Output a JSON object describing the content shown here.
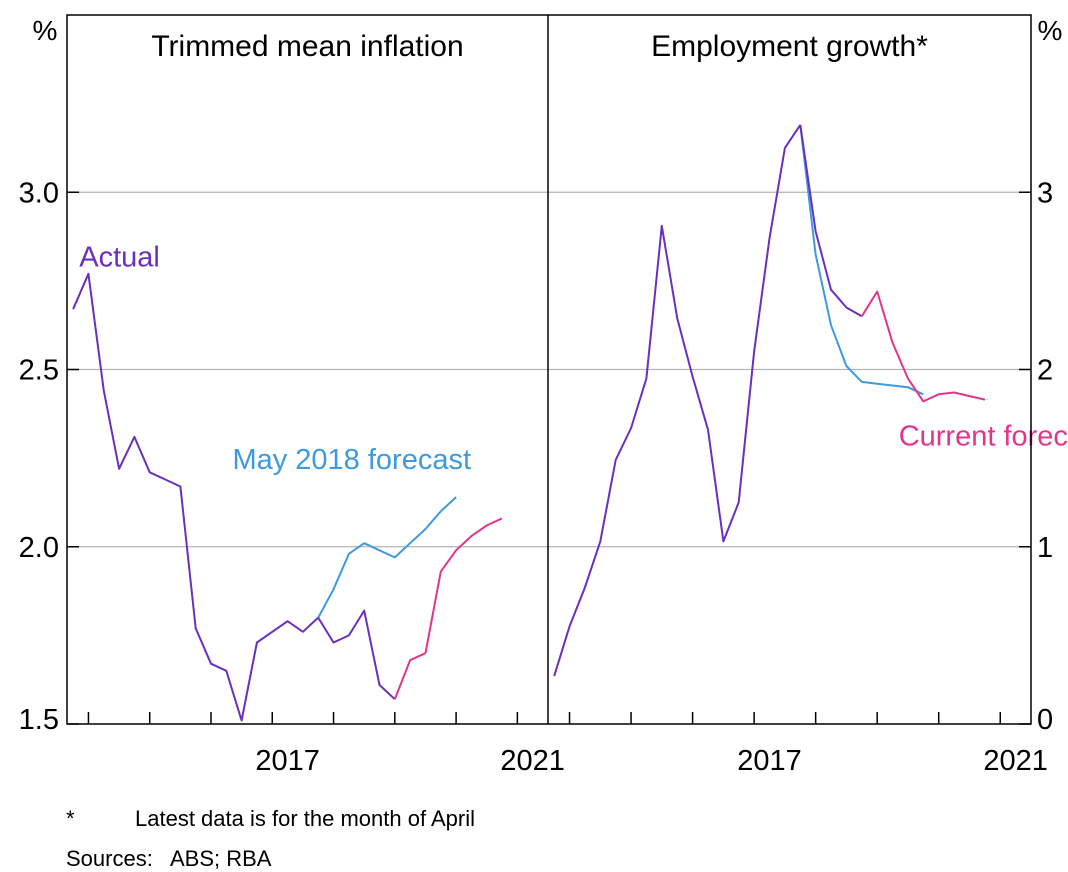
{
  "chart_data": [
    {
      "type": "line",
      "title": "Trimmed mean inflation",
      "unit_label": "%",
      "axis_side": "left",
      "ylim": [
        1.5,
        3.5
      ],
      "yticks": [
        1.5,
        2.0,
        2.5,
        3.0
      ],
      "ytick_labels": [
        "1.5",
        "2.0",
        "2.5",
        "3.0"
      ],
      "xlim": [
        2013.9,
        2021.75
      ],
      "xticks": [
        2014.25,
        2015.25,
        2016.25,
        2017.25,
        2018.25,
        2019.25,
        2020.25,
        2021.25
      ],
      "xtick_labels": [
        {
          "x": 2017.25,
          "label": "2017"
        },
        {
          "x": 2021.25,
          "label": "2021"
        }
      ],
      "grid": true,
      "series": [
        {
          "name": "Actual",
          "color": "#6a2fbe",
          "x": [
            2014.0,
            2014.25,
            2014.5,
            2014.75,
            2015.0,
            2015.25,
            2015.5,
            2015.75,
            2016.0,
            2016.25,
            2016.5,
            2016.75,
            2017.0,
            2017.25,
            2017.5,
            2017.75,
            2018.0
          ],
          "y": [
            2.67,
            2.77,
            2.44,
            2.22,
            2.31,
            2.21,
            2.19,
            2.17,
            1.77,
            1.67,
            1.65,
            1.51,
            1.73,
            1.76,
            1.79,
            1.76,
            1.8
          ]
        },
        {
          "name": "May 2018 forecast",
          "color": "#3d9ae0",
          "x": [
            2018.0,
            2018.25,
            2018.5,
            2018.75,
            2019.0,
            2019.25,
            2019.5,
            2019.75,
            2020.0,
            2020.25
          ],
          "y": [
            1.8,
            1.88,
            1.98,
            2.01,
            1.99,
            1.97,
            2.01,
            2.05,
            2.1,
            2.14
          ]
        },
        {
          "name": "Actual",
          "color": "#6a2fbe",
          "x": [
            2018.0,
            2018.25,
            2018.5,
            2018.75,
            2019.0,
            2019.25
          ],
          "y": [
            1.8,
            1.73,
            1.75,
            1.82,
            1.61,
            1.57
          ]
        },
        {
          "name": "Current forecast",
          "color": "#e3348c",
          "x": [
            2019.25,
            2019.5,
            2019.75,
            2020.0,
            2020.25,
            2020.5,
            2020.75,
            2021.0
          ],
          "y": [
            1.57,
            1.68,
            1.7,
            1.93,
            1.99,
            2.03,
            2.06,
            2.08
          ]
        }
      ],
      "annotations": [
        {
          "text": "Actual",
          "color": "#6a2fbe",
          "x": 2014.1,
          "y": 2.79
        },
        {
          "text": "May 2018 forecast",
          "color": "#3d9ae0",
          "x": 2016.6,
          "y": 2.22
        }
      ]
    },
    {
      "type": "line",
      "title": "Employment growth*",
      "unit_label": "%",
      "axis_side": "right",
      "ylim": [
        0,
        4
      ],
      "yticks": [
        0,
        1,
        2,
        3
      ],
      "ytick_labels": [
        "0",
        "1",
        "2",
        "3"
      ],
      "xlim": [
        2013.9,
        2021.75
      ],
      "xticks": [
        2014.25,
        2015.25,
        2016.25,
        2017.25,
        2018.25,
        2019.25,
        2020.25,
        2021.25
      ],
      "xtick_labels": [
        {
          "x": 2017.25,
          "label": "2017"
        },
        {
          "x": 2021.25,
          "label": "2021"
        }
      ],
      "grid": true,
      "series": [
        {
          "name": "Actual",
          "color": "#6a2fbe",
          "x": [
            2014.0,
            2014.25,
            2014.5,
            2014.75,
            2015.0,
            2015.25,
            2015.5,
            2015.75,
            2016.0,
            2016.25,
            2016.5,
            2016.75,
            2017.0,
            2017.25,
            2017.5,
            2017.75,
            2018.0
          ],
          "y": [
            0.27,
            0.55,
            0.77,
            1.03,
            1.49,
            1.67,
            1.95,
            2.81,
            2.29,
            1.96,
            1.66,
            1.03,
            1.25,
            2.1,
            2.74,
            3.25,
            3.38
          ]
        },
        {
          "name": "May 2018 forecast",
          "color": "#3d9ae0",
          "x": [
            2018.0,
            2018.25,
            2018.5,
            2018.75,
            2019.0,
            2019.25,
            2019.5,
            2019.75,
            2020.0
          ],
          "y": [
            3.38,
            2.65,
            2.25,
            2.02,
            1.93,
            1.92,
            1.91,
            1.9,
            1.86
          ]
        },
        {
          "name": "Actual",
          "color": "#6a2fbe",
          "x": [
            2018.0,
            2018.25,
            2018.5,
            2018.75,
            2019.0
          ],
          "y": [
            3.38,
            2.78,
            2.45,
            2.35,
            2.3
          ]
        },
        {
          "name": "Current forecast",
          "color": "#e3348c",
          "x": [
            2019.0,
            2019.25,
            2019.5,
            2019.75,
            2020.0,
            2020.25,
            2020.5,
            2020.75,
            2021.0
          ],
          "y": [
            2.3,
            2.44,
            2.15,
            1.95,
            1.82,
            1.86,
            1.87,
            1.85,
            1.83
          ]
        }
      ],
      "annotations": [
        {
          "text": "Current forecast",
          "color": "#e3348c",
          "x": 2019.6,
          "y": 1.57
        }
      ]
    }
  ],
  "footnotes": {
    "star": "*",
    "note": "Latest data is for the month of April",
    "sources_label": "Sources:",
    "sources_text": "ABS; RBA"
  }
}
